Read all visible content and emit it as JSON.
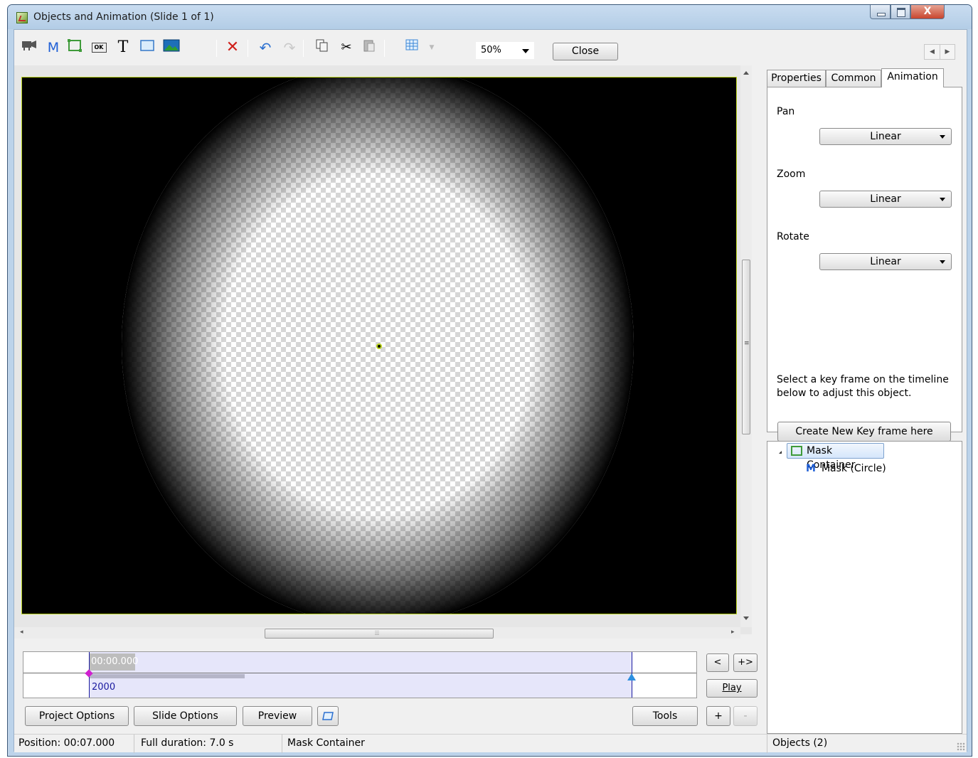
{
  "window": {
    "title": "Objects and Animation  (Slide 1 of 1)",
    "close_glyph": "X"
  },
  "toolbar": {
    "icons": [
      "camera-icon",
      "mask-icon",
      "frame-icon",
      "button-icon",
      "text-icon",
      "rectangle-icon",
      "image-icon",
      "delete-icon",
      "undo-icon",
      "redo-icon",
      "copy-icon",
      "cut-icon",
      "paste-icon",
      "grid-icon",
      "grid-dropdown-icon"
    ],
    "mask_glyph": "M",
    "text_glyph": "T",
    "button_glyph": "OK",
    "zoom_value": "50%",
    "close_label": "Close"
  },
  "timeline": {
    "time_label": "00:00.000",
    "duration_label": "2000",
    "prev_label": "<",
    "next_label": "+>",
    "play_label": "Play",
    "add_label": "+",
    "remove_label": "-"
  },
  "bottom_buttons": {
    "project_options": "Project Options",
    "slide_options": "Slide Options",
    "preview": "Preview",
    "tools": "Tools"
  },
  "panel": {
    "tabs": [
      "Properties",
      "Common",
      "Animation"
    ],
    "active_tab": "Animation",
    "pan_label": "Pan",
    "pan_value": "Linear",
    "zoom_label": "Zoom",
    "zoom_value": "Linear",
    "rotate_label": "Rotate",
    "rotate_value": "Linear",
    "hint": "Select a key frame on the timeline below to adjust this object.",
    "create_key_label": "Create New Key frame here"
  },
  "tree": {
    "items": [
      {
        "label": "Mask Container",
        "icon": "frame-icon",
        "selected": true
      },
      {
        "label": "Mask (Circle)",
        "icon": "mask-icon",
        "glyph": "M",
        "selected": false
      }
    ]
  },
  "status": {
    "position": "Position:  00:07.000",
    "duration": "Full duration:  7.0 s",
    "selected": "Mask Container",
    "objects": "Objects (2)"
  },
  "colors": {
    "accent_frame": "#b9d21a",
    "timeline_band": "#e6e6fa",
    "keyframe": "#d020d0",
    "marker": "#2d90e0"
  }
}
